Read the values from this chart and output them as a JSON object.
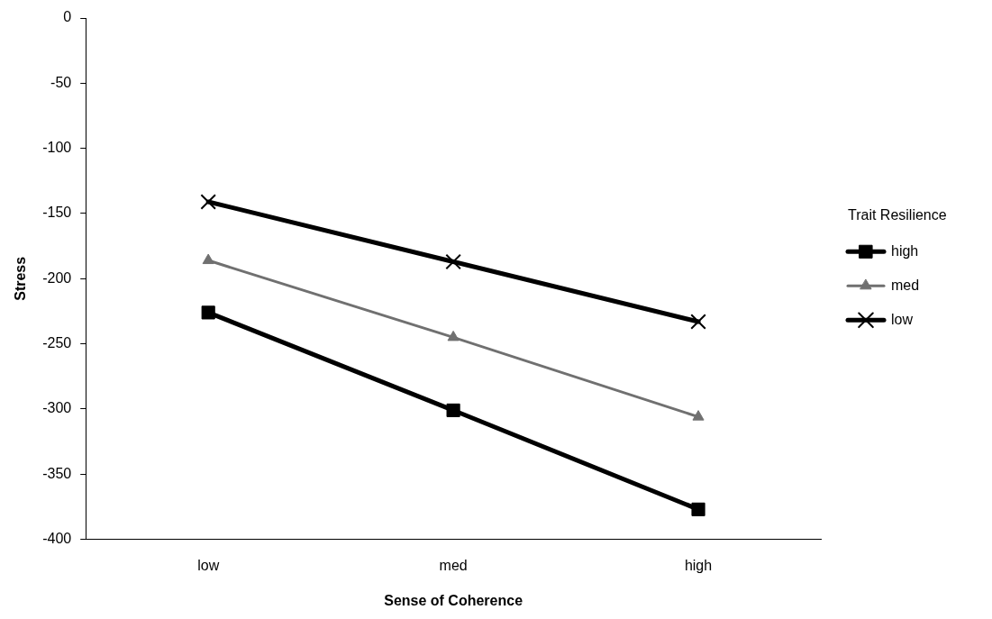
{
  "chart_data": {
    "type": "line",
    "xlabel": "Sense of Coherence",
    "ylabel": "Stress",
    "legend_title": "Trait Resilience",
    "categories": [
      "low",
      "med",
      "high"
    ],
    "series": [
      {
        "name": "high",
        "color": "#000000",
        "marker": "square",
        "values": [
          -226,
          -301,
          -377
        ]
      },
      {
        "name": "med",
        "color": "#707070",
        "marker": "triangle",
        "values": [
          -186,
          -245,
          -306
        ]
      },
      {
        "name": "low",
        "color": "#000000",
        "marker": "cross",
        "values": [
          -141,
          -187,
          -233
        ]
      }
    ],
    "ylim": [
      -400,
      0
    ],
    "yticks": [
      0,
      -50,
      -100,
      -150,
      -200,
      -250,
      -300,
      -350,
      -400
    ],
    "grid": false,
    "legend": "right"
  }
}
